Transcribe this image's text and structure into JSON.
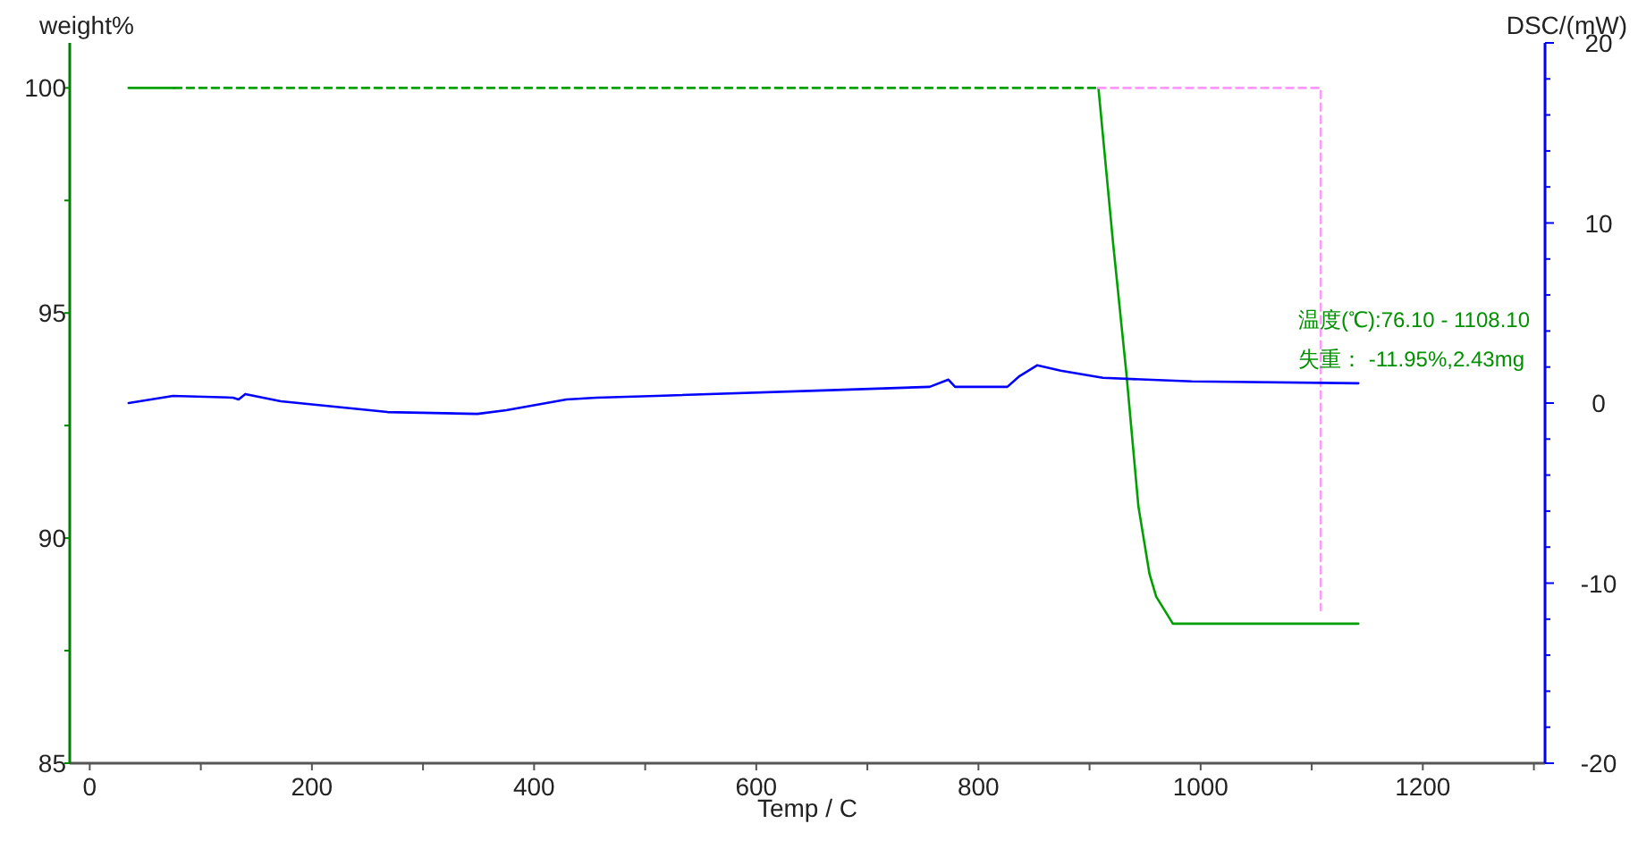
{
  "chart_data": {
    "type": "line",
    "xlabel": "Temp / C",
    "ylabel": "weight%",
    "y2label": "DSC/(mW)",
    "xlim": [
      -18,
      1310
    ],
    "ylim": [
      85,
      101
    ],
    "y2lim": [
      -20,
      20
    ],
    "xticks": [
      0,
      {
        "value": 100,
        "label": null
      },
      200,
      {
        "value": 300,
        "label": null
      },
      400,
      {
        "value": 500,
        "label": null
      },
      600,
      {
        "value": 700,
        "label": null
      },
      800,
      {
        "value": 900,
        "label": null
      },
      1000,
      {
        "value": 1100,
        "label": null
      },
      1200,
      {
        "value": 1300,
        "label": null
      }
    ],
    "yticks": [
      85,
      {
        "value": 87.5,
        "label": null
      },
      90,
      {
        "value": 92.5,
        "label": null
      },
      95,
      {
        "value": 97.5,
        "label": null
      },
      100
    ],
    "y2ticks": [
      -20,
      {
        "value": -18,
        "label": null
      },
      {
        "value": -16,
        "label": null
      },
      {
        "value": -14,
        "label": null
      },
      {
        "value": -12,
        "label": null
      },
      -10,
      {
        "value": -8,
        "label": null
      },
      {
        "value": -6,
        "label": null
      },
      {
        "value": -4,
        "label": null
      },
      {
        "value": -2,
        "label": null
      },
      0,
      {
        "value": 2,
        "label": null
      },
      {
        "value": 4,
        "label": null
      },
      {
        "value": 6,
        "label": null
      },
      {
        "value": 8,
        "label": null
      },
      10,
      {
        "value": 12,
        "label": null
      },
      {
        "value": 14,
        "label": null
      },
      {
        "value": 16,
        "label": null
      },
      {
        "value": 18,
        "label": null
      },
      20
    ],
    "grid": false,
    "series": [
      {
        "color": "#00a000",
        "line_style": "solid",
        "x": [
          35,
          76.1
        ],
        "values": [
          100,
          100
        ]
      },
      {
        "color": "#00a000",
        "line_style": "dashed",
        "x": [
          76.1,
          908
        ],
        "values": [
          100,
          100
        ]
      },
      {
        "color": "#00a000",
        "line_style": "solid",
        "x": [
          908,
          921,
          933,
          944,
          954,
          960,
          975,
          1142
        ],
        "values": [
          100,
          96.6,
          93.7,
          90.7,
          89.2,
          88.7,
          88.1,
          88.1
        ]
      },
      {
        "color": "#ff99ff",
        "line_style": "dashed",
        "x": [
          908,
          1108.1,
          1108.1
        ],
        "values": [
          100,
          100,
          88.4
        ]
      },
      {
        "axis": "y2",
        "color": "#0000ff",
        "line_style": "solid",
        "x": [
          35,
          75,
          129,
          134,
          140,
          172,
          220,
          268,
          349,
          375,
          429,
          456,
          510,
          660,
          756,
          773,
          779,
          826,
          837,
          853,
          874,
          912,
          992,
          1142
        ],
        "values": [
          0.0,
          0.4,
          0.3,
          0.2,
          0.5,
          0.1,
          -0.2,
          -0.5,
          -0.6,
          -0.4,
          0.2,
          0.3,
          0.4,
          0.7,
          0.9,
          1.3,
          0.9,
          0.9,
          1.5,
          2.1,
          1.8,
          1.4,
          1.2,
          1.1
        ]
      }
    ],
    "annotations": [
      "温度(℃):76.10 - 1108.10",
      "失重： -11.95%,2.43mg"
    ]
  }
}
